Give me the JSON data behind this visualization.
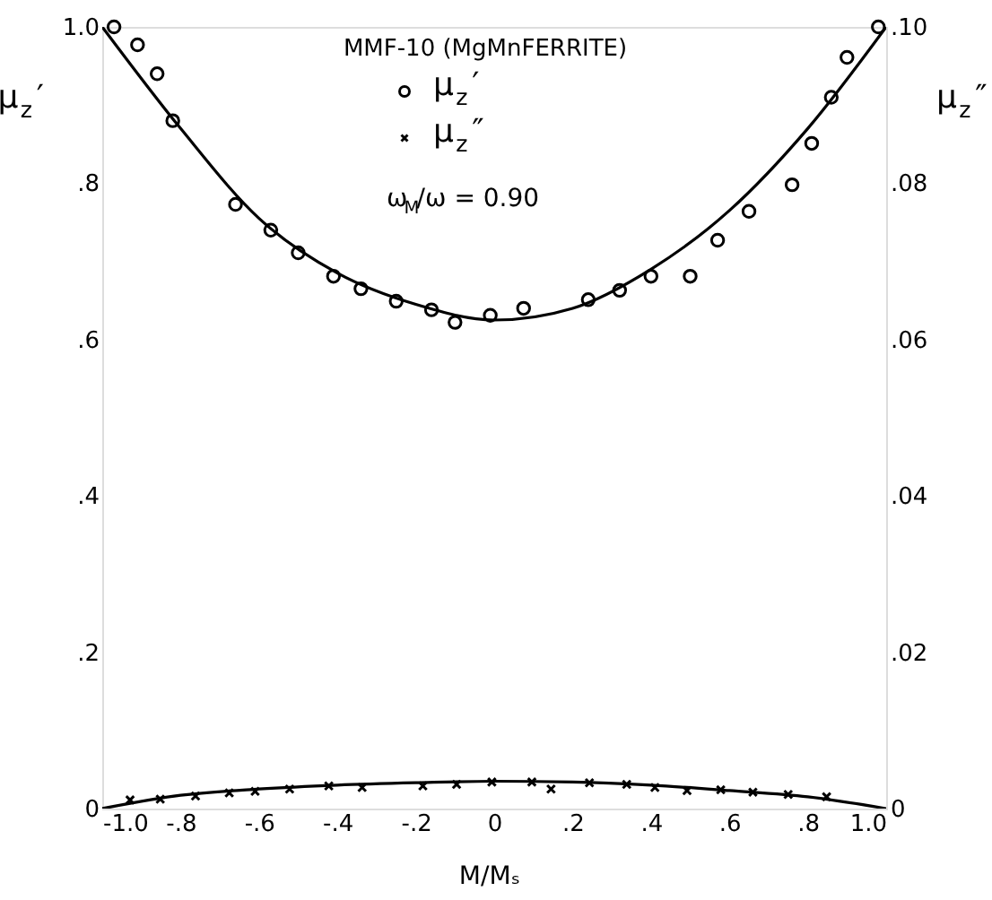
{
  "chart_data": {
    "type": "scatter",
    "title": "MMF-10 (MgMnFERRITE)",
    "xlabel": "M/Mₛ",
    "ylabel": "μ$_{z}$′",
    "y2label": "μ$_{z}$″",
    "annotations": [
      "ω$_{M}$/ω = 0.90"
    ],
    "xlim": [
      -1,
      1
    ],
    "xticks": [
      {
        "value": -1,
        "label": "-1.0"
      },
      {
        "value": -0.8,
        "label": "-.8"
      },
      {
        "value": -0.6,
        "label": "-.6"
      },
      {
        "value": -0.4,
        "label": "-.4"
      },
      {
        "value": -0.2,
        "label": "-.2"
      },
      0,
      {
        "value": 0.2,
        "label": ".2"
      },
      {
        "value": 0.4,
        "label": ".4"
      },
      {
        "value": 0.6,
        "label": ".6"
      },
      {
        "value": 0.8,
        "label": ".8"
      },
      {
        "value": 1,
        "label": "1.0"
      }
    ],
    "ylim": [
      0,
      1
    ],
    "yticks": [
      0,
      {
        "value": 0.2,
        "label": ".2"
      },
      {
        "value": 0.4,
        "label": ".4"
      },
      {
        "value": 0.6,
        "label": ".6"
      },
      {
        "value": 0.8,
        "label": ".8"
      },
      {
        "value": 1,
        "label": "1.0"
      }
    ],
    "y2lim": [
      0,
      0.1
    ],
    "y2ticks": [
      0,
      {
        "value": 0.02,
        "label": ".02"
      },
      {
        "value": 0.04,
        "label": ".04"
      },
      {
        "value": 0.06,
        "label": ".06"
      },
      {
        "value": 0.08,
        "label": ".08"
      },
      {
        "value": 0.1,
        "label": ".10"
      }
    ],
    "grid": false,
    "legend": "top",
    "series": [
      {
        "name": "μ$_{z}$′",
        "marker": "circle",
        "color": "#000000",
        "x": [
          -0.97,
          -0.91,
          -0.86,
          -0.82,
          -0.66,
          -0.57,
          -0.5,
          -0.41,
          -0.34,
          -0.25,
          -0.16,
          -0.1,
          -0.01,
          0.075,
          0.24,
          0.32,
          0.4,
          0.5,
          0.57,
          0.65,
          0.76,
          0.81,
          0.86,
          0.9,
          0.98
        ],
        "values": [
          1.0,
          0.977,
          0.94,
          0.88,
          0.773,
          0.74,
          0.711,
          0.681,
          0.665,
          0.649,
          0.638,
          0.622,
          0.631,
          0.64,
          0.651,
          0.663,
          0.681,
          0.681,
          0.727,
          0.764,
          0.798,
          0.851,
          0.91,
          0.961,
          1.0
        ]
      },
      {
        "type": "line",
        "line_style": "solid",
        "color": "#000000",
        "x": [
          -1,
          -0.8,
          -0.6,
          -0.4,
          -0.2,
          0,
          0.2,
          0.4,
          0.6,
          0.8,
          1
        ],
        "values": [
          1.0,
          0.87,
          0.755,
          0.685,
          0.645,
          0.625,
          0.64,
          0.69,
          0.765,
          0.87,
          1.0
        ]
      },
      {
        "name": "μ$_{z}$″",
        "marker": "cross",
        "axis": "y2",
        "color": "#000000",
        "x": [
          -0.929,
          -0.852,
          -0.762,
          -0.676,
          -0.61,
          -0.522,
          -0.422,
          -0.337,
          -0.182,
          -0.096,
          -0.006,
          0.096,
          0.145,
          0.243,
          0.338,
          0.41,
          0.492,
          0.578,
          0.66,
          0.75,
          0.848
        ],
        "values": [
          0.0011,
          0.0012,
          0.0016,
          0.002,
          0.0022,
          0.0025,
          0.0029,
          0.0027,
          0.0029,
          0.0031,
          0.0034,
          0.0034,
          0.0025,
          0.0033,
          0.0031,
          0.0027,
          0.0023,
          0.0024,
          0.0021,
          0.0018,
          0.0015
        ]
      },
      {
        "type": "line",
        "line_style": "solid",
        "axis": "y2",
        "color": "#000000",
        "x": [
          -1,
          -0.8,
          -0.6,
          -0.4,
          -0.2,
          0,
          0.2,
          0.4,
          0.6,
          0.8,
          1
        ],
        "values": [
          0,
          0.0017,
          0.0025,
          0.003,
          0.0033,
          0.0035,
          0.0034,
          0.003,
          0.0023,
          0.0015,
          0
        ]
      }
    ]
  }
}
